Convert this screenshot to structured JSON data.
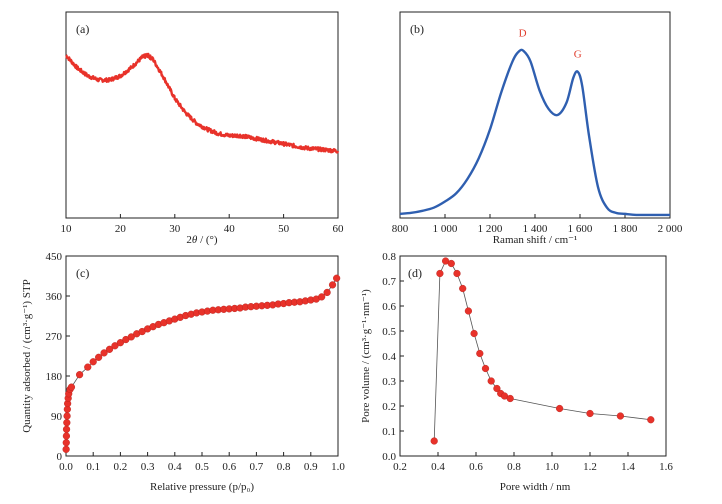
{
  "figure": {
    "panels": [
      "(a)",
      "(b)",
      "(c)",
      "(d)"
    ]
  },
  "colors": {
    "red": "#e8322a",
    "blue": "#2f5fb0",
    "annot": "#e03b2b",
    "axis": "#222222",
    "guide_line": "#555555"
  },
  "chart_data": [
    {
      "id": "a",
      "panel_label": "(a)",
      "type": "line",
      "xlabel_parts": [
        "2",
        "θ",
        " / (°)"
      ],
      "ylabel": "",
      "xlim": [
        10,
        60
      ],
      "ylim": [
        0,
        1
      ],
      "x_ticks": [
        10,
        20,
        30,
        40,
        50,
        60
      ],
      "y_ticks": [],
      "noisy": true,
      "series": [
        {
          "color": "#e8322a",
          "x": [
            10,
            12,
            14,
            16,
            18,
            20,
            22,
            24,
            25,
            26,
            28,
            30,
            32,
            34,
            36,
            38,
            40,
            42,
            44,
            46,
            48,
            50,
            52,
            54,
            56,
            58,
            60
          ],
          "y": [
            0.79,
            0.73,
            0.69,
            0.67,
            0.67,
            0.69,
            0.73,
            0.78,
            0.79,
            0.77,
            0.68,
            0.58,
            0.51,
            0.46,
            0.43,
            0.41,
            0.4,
            0.4,
            0.39,
            0.38,
            0.37,
            0.36,
            0.35,
            0.34,
            0.335,
            0.33,
            0.325
          ]
        }
      ]
    },
    {
      "id": "b",
      "panel_label": "(b)",
      "type": "line",
      "xlabel": "Raman shift / cm⁻¹",
      "ylabel": "",
      "xlim": [
        800,
        2000
      ],
      "ylim": [
        0,
        1
      ],
      "x_ticks": [
        800,
        1000,
        1200,
        1400,
        1600,
        1800,
        2000
      ],
      "x_tick_labels": [
        "800",
        "1 000",
        "1 200",
        "1 400",
        "1 600",
        "1 800",
        "2 000"
      ],
      "y_ticks": [],
      "annotations": [
        {
          "text": "D",
          "x": 1345,
          "y": 0.88
        },
        {
          "text": "G",
          "x": 1590,
          "y": 0.78
        }
      ],
      "series": [
        {
          "color": "#2f5fb0",
          "x": [
            800,
            850,
            900,
            950,
            1000,
            1050,
            1100,
            1150,
            1200,
            1250,
            1300,
            1330,
            1350,
            1380,
            1420,
            1460,
            1500,
            1540,
            1570,
            1590,
            1610,
            1640,
            1680,
            1720,
            1760,
            1800,
            1850,
            1900,
            2000
          ],
          "y": [
            0.02,
            0.025,
            0.035,
            0.05,
            0.08,
            0.12,
            0.19,
            0.29,
            0.43,
            0.61,
            0.76,
            0.81,
            0.81,
            0.76,
            0.62,
            0.53,
            0.5,
            0.56,
            0.68,
            0.71,
            0.64,
            0.4,
            0.15,
            0.05,
            0.025,
            0.02,
            0.015,
            0.015,
            0.015
          ]
        }
      ]
    },
    {
      "id": "c",
      "panel_label": "(c)",
      "type": "scatter",
      "xlabel": "Relative pressure (p/p₀)",
      "ylabel": "Quantity adsorbed / (cm³·g⁻¹) STP",
      "xlim": [
        0,
        1.0
      ],
      "ylim": [
        0,
        450
      ],
      "x_ticks": [
        0.0,
        0.1,
        0.2,
        0.3,
        0.4,
        0.5,
        0.6,
        0.7,
        0.8,
        0.9,
        1.0
      ],
      "x_tick_labels": [
        "0.0",
        "0.1",
        "0.2",
        "0.3",
        "0.4",
        "0.5",
        "0.6",
        "0.7",
        "0.8",
        "0.9",
        "1.0"
      ],
      "y_ticks": [
        0,
        90,
        180,
        270,
        360,
        450
      ],
      "series": [
        {
          "color": "#e8322a",
          "connected": true,
          "x": [
            0.0005,
            0.001,
            0.0015,
            0.002,
            0.003,
            0.004,
            0.005,
            0.006,
            0.008,
            0.01,
            0.015,
            0.02,
            0.05,
            0.08,
            0.1,
            0.12,
            0.14,
            0.16,
            0.18,
            0.2,
            0.22,
            0.24,
            0.26,
            0.28,
            0.3,
            0.32,
            0.34,
            0.36,
            0.38,
            0.4,
            0.42,
            0.44,
            0.46,
            0.48,
            0.5,
            0.52,
            0.54,
            0.56,
            0.58,
            0.6,
            0.62,
            0.64,
            0.66,
            0.68,
            0.7,
            0.72,
            0.74,
            0.76,
            0.78,
            0.8,
            0.82,
            0.84,
            0.86,
            0.88,
            0.9,
            0.92,
            0.94,
            0.96,
            0.98,
            0.995
          ],
          "y": [
            15,
            30,
            45,
            60,
            75,
            90,
            105,
            118,
            130,
            140,
            150,
            155,
            183,
            200,
            212,
            222,
            232,
            240,
            248,
            255,
            262,
            268,
            275,
            280,
            286,
            291,
            296,
            300,
            304,
            308,
            312,
            316,
            319,
            322,
            324,
            326,
            328,
            329,
            330,
            331,
            332,
            333,
            335,
            336,
            337,
            338,
            339,
            340,
            342,
            343,
            345,
            346,
            347,
            349,
            351,
            353,
            358,
            368,
            385,
            400
          ]
        }
      ]
    },
    {
      "id": "d",
      "panel_label": "(d)",
      "type": "scatter",
      "xlabel": "Pore width / nm",
      "ylabel": "Pore volume / (cm³·g⁻¹·nm⁻¹)",
      "xlim": [
        0.2,
        1.6
      ],
      "ylim": [
        0.0,
        0.8
      ],
      "x_ticks": [
        0.2,
        0.4,
        0.6,
        0.8,
        1.0,
        1.2,
        1.4,
        1.6
      ],
      "x_tick_labels": [
        "0.2",
        "0.4",
        "0.6",
        "0.8",
        "1.0",
        "1.2",
        "1.4",
        "1.6"
      ],
      "y_ticks": [
        0.0,
        0.1,
        0.2,
        0.3,
        0.4,
        0.5,
        0.6,
        0.7,
        0.8
      ],
      "y_tick_labels": [
        "0.0",
        "0.1",
        "0.2",
        "0.3",
        "0.4",
        "0.5",
        "0.6",
        "0.7",
        "0.8"
      ],
      "series": [
        {
          "color": "#e8322a",
          "connected": true,
          "x": [
            0.38,
            0.41,
            0.44,
            0.47,
            0.5,
            0.53,
            0.56,
            0.59,
            0.62,
            0.65,
            0.68,
            0.71,
            0.73,
            0.75,
            0.78,
            1.04,
            1.2,
            1.36,
            1.52
          ],
          "y": [
            0.06,
            0.73,
            0.78,
            0.77,
            0.73,
            0.67,
            0.58,
            0.49,
            0.41,
            0.35,
            0.3,
            0.27,
            0.25,
            0.24,
            0.23,
            0.19,
            0.17,
            0.16,
            0.145
          ]
        }
      ]
    }
  ]
}
